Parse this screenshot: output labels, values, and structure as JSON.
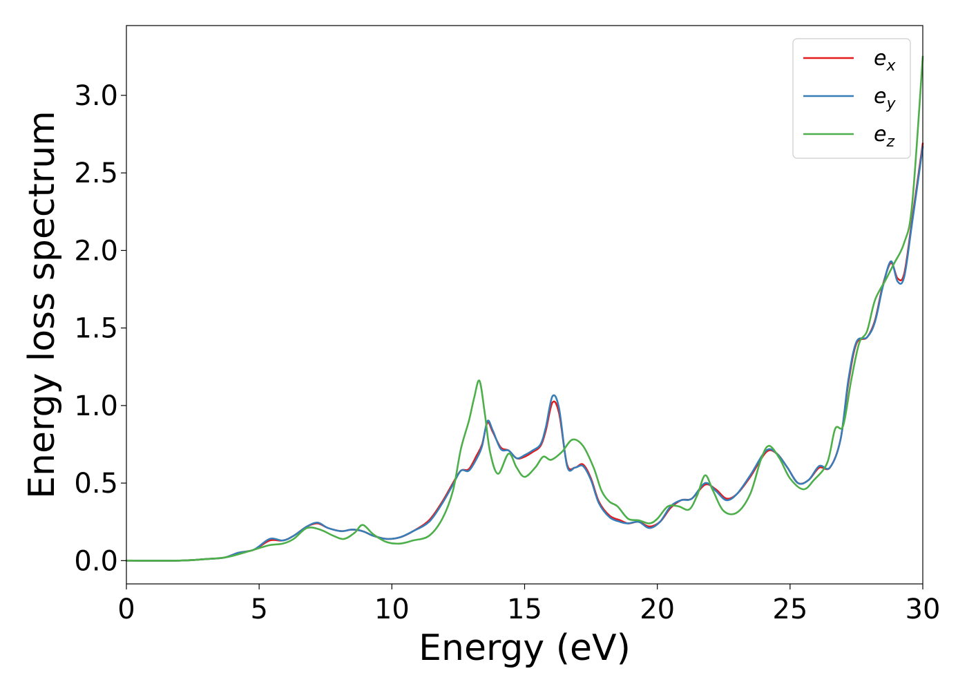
{
  "chart_data": {
    "type": "line",
    "title": "",
    "xlabel": "Energy (eV)",
    "ylabel": "Energy loss spectrum",
    "xlim": [
      0,
      30
    ],
    "ylim": [
      -0.15,
      3.45
    ],
    "xticks": [
      0,
      5,
      10,
      15,
      20,
      25,
      30
    ],
    "yticks": [
      0.0,
      0.5,
      1.0,
      1.5,
      2.0,
      2.5,
      3.0
    ],
    "grid": false,
    "legend_position": "top-right",
    "series": [
      {
        "name": "e_x",
        "legend_base": "e",
        "legend_sub": "x",
        "color": "#e41a1c",
        "points": [
          [
            0,
            0.0
          ],
          [
            2,
            0.0
          ],
          [
            3,
            0.01
          ],
          [
            3.7,
            0.02
          ],
          [
            4.2,
            0.05
          ],
          [
            4.8,
            0.07
          ],
          [
            5.4,
            0.13
          ],
          [
            5.9,
            0.13
          ],
          [
            6.3,
            0.16
          ],
          [
            6.8,
            0.22
          ],
          [
            7.2,
            0.24
          ],
          [
            7.6,
            0.21
          ],
          [
            8.1,
            0.19
          ],
          [
            8.5,
            0.2
          ],
          [
            8.9,
            0.19
          ],
          [
            9.3,
            0.16
          ],
          [
            9.8,
            0.14
          ],
          [
            10.3,
            0.15
          ],
          [
            10.8,
            0.19
          ],
          [
            11.4,
            0.26
          ],
          [
            11.9,
            0.38
          ],
          [
            12.3,
            0.5
          ],
          [
            12.6,
            0.58
          ],
          [
            12.9,
            0.59
          ],
          [
            13.2,
            0.68
          ],
          [
            13.4,
            0.75
          ],
          [
            13.6,
            0.89
          ],
          [
            13.8,
            0.83
          ],
          [
            14.1,
            0.73
          ],
          [
            14.4,
            0.71
          ],
          [
            14.7,
            0.66
          ],
          [
            15.0,
            0.67
          ],
          [
            15.3,
            0.7
          ],
          [
            15.6,
            0.74
          ],
          [
            15.8,
            0.84
          ],
          [
            16.05,
            1.02
          ],
          [
            16.3,
            0.95
          ],
          [
            16.6,
            0.62
          ],
          [
            16.9,
            0.6
          ],
          [
            17.2,
            0.62
          ],
          [
            17.5,
            0.53
          ],
          [
            17.8,
            0.38
          ],
          [
            18.2,
            0.29
          ],
          [
            18.6,
            0.26
          ],
          [
            18.9,
            0.24
          ],
          [
            19.3,
            0.25
          ],
          [
            19.7,
            0.22
          ],
          [
            20.1,
            0.25
          ],
          [
            20.5,
            0.34
          ],
          [
            20.9,
            0.39
          ],
          [
            21.3,
            0.4
          ],
          [
            21.8,
            0.49
          ],
          [
            22.2,
            0.46
          ],
          [
            22.6,
            0.4
          ],
          [
            23.0,
            0.43
          ],
          [
            23.5,
            0.54
          ],
          [
            24.1,
            0.7
          ],
          [
            24.5,
            0.69
          ],
          [
            24.9,
            0.6
          ],
          [
            25.3,
            0.5
          ],
          [
            25.7,
            0.52
          ],
          [
            26.1,
            0.6
          ],
          [
            26.5,
            0.6
          ],
          [
            26.9,
            0.78
          ],
          [
            27.2,
            1.15
          ],
          [
            27.5,
            1.4
          ],
          [
            27.9,
            1.44
          ],
          [
            28.2,
            1.55
          ],
          [
            28.5,
            1.78
          ],
          [
            28.8,
            1.92
          ],
          [
            29.05,
            1.82
          ],
          [
            29.3,
            1.85
          ],
          [
            29.6,
            2.2
          ],
          [
            30.0,
            2.69
          ]
        ]
      },
      {
        "name": "e_y",
        "legend_base": "e",
        "legend_sub": "y",
        "color": "#377eb8",
        "points": [
          [
            0,
            0.0
          ],
          [
            2,
            0.0
          ],
          [
            3,
            0.01
          ],
          [
            3.7,
            0.02
          ],
          [
            4.2,
            0.05
          ],
          [
            4.8,
            0.07
          ],
          [
            5.4,
            0.14
          ],
          [
            5.9,
            0.13
          ],
          [
            6.3,
            0.16
          ],
          [
            6.8,
            0.22
          ],
          [
            7.2,
            0.245
          ],
          [
            7.6,
            0.21
          ],
          [
            8.1,
            0.19
          ],
          [
            8.5,
            0.2
          ],
          [
            8.9,
            0.19
          ],
          [
            9.3,
            0.16
          ],
          [
            9.8,
            0.14
          ],
          [
            10.3,
            0.15
          ],
          [
            10.8,
            0.19
          ],
          [
            11.4,
            0.25
          ],
          [
            11.9,
            0.37
          ],
          [
            12.3,
            0.49
          ],
          [
            12.6,
            0.58
          ],
          [
            12.9,
            0.58
          ],
          [
            13.2,
            0.66
          ],
          [
            13.4,
            0.74
          ],
          [
            13.6,
            0.9
          ],
          [
            13.8,
            0.84
          ],
          [
            14.1,
            0.72
          ],
          [
            14.4,
            0.71
          ],
          [
            14.7,
            0.66
          ],
          [
            15.0,
            0.68
          ],
          [
            15.3,
            0.71
          ],
          [
            15.6,
            0.75
          ],
          [
            15.8,
            0.86
          ],
          [
            16.05,
            1.06
          ],
          [
            16.3,
            0.98
          ],
          [
            16.6,
            0.61
          ],
          [
            16.9,
            0.6
          ],
          [
            17.2,
            0.61
          ],
          [
            17.5,
            0.52
          ],
          [
            17.8,
            0.37
          ],
          [
            18.2,
            0.28
          ],
          [
            18.6,
            0.25
          ],
          [
            18.9,
            0.24
          ],
          [
            19.3,
            0.25
          ],
          [
            19.7,
            0.21
          ],
          [
            20.1,
            0.25
          ],
          [
            20.5,
            0.35
          ],
          [
            20.9,
            0.39
          ],
          [
            21.3,
            0.4
          ],
          [
            21.8,
            0.5
          ],
          [
            22.2,
            0.45
          ],
          [
            22.6,
            0.39
          ],
          [
            23.0,
            0.43
          ],
          [
            23.5,
            0.55
          ],
          [
            24.1,
            0.71
          ],
          [
            24.5,
            0.69
          ],
          [
            24.9,
            0.6
          ],
          [
            25.3,
            0.5
          ],
          [
            25.7,
            0.52
          ],
          [
            26.1,
            0.61
          ],
          [
            26.5,
            0.6
          ],
          [
            26.9,
            0.78
          ],
          [
            27.2,
            1.17
          ],
          [
            27.5,
            1.41
          ],
          [
            27.9,
            1.44
          ],
          [
            28.2,
            1.54
          ],
          [
            28.5,
            1.77
          ],
          [
            28.8,
            1.93
          ],
          [
            29.05,
            1.8
          ],
          [
            29.3,
            1.83
          ],
          [
            29.6,
            2.18
          ],
          [
            30.0,
            2.67
          ]
        ]
      },
      {
        "name": "e_z",
        "legend_base": "e",
        "legend_sub": "z",
        "color": "#4daf4a",
        "points": [
          [
            0,
            0.0
          ],
          [
            2,
            0.0
          ],
          [
            3,
            0.01
          ],
          [
            3.7,
            0.02
          ],
          [
            4.2,
            0.04
          ],
          [
            4.8,
            0.07
          ],
          [
            5.4,
            0.1
          ],
          [
            5.9,
            0.11
          ],
          [
            6.3,
            0.14
          ],
          [
            6.8,
            0.21
          ],
          [
            7.3,
            0.2
          ],
          [
            7.8,
            0.16
          ],
          [
            8.2,
            0.14
          ],
          [
            8.6,
            0.18
          ],
          [
            8.9,
            0.23
          ],
          [
            9.3,
            0.17
          ],
          [
            9.8,
            0.12
          ],
          [
            10.3,
            0.11
          ],
          [
            10.8,
            0.13
          ],
          [
            11.4,
            0.16
          ],
          [
            11.9,
            0.27
          ],
          [
            12.3,
            0.45
          ],
          [
            12.6,
            0.72
          ],
          [
            12.9,
            0.9
          ],
          [
            13.1,
            1.05
          ],
          [
            13.3,
            1.16
          ],
          [
            13.5,
            0.95
          ],
          [
            13.7,
            0.7
          ],
          [
            14.0,
            0.56
          ],
          [
            14.4,
            0.69
          ],
          [
            14.7,
            0.6
          ],
          [
            15.0,
            0.54
          ],
          [
            15.4,
            0.6
          ],
          [
            15.7,
            0.67
          ],
          [
            16.0,
            0.65
          ],
          [
            16.4,
            0.7
          ],
          [
            16.8,
            0.78
          ],
          [
            17.2,
            0.74
          ],
          [
            17.6,
            0.6
          ],
          [
            17.9,
            0.45
          ],
          [
            18.2,
            0.38
          ],
          [
            18.5,
            0.35
          ],
          [
            18.9,
            0.27
          ],
          [
            19.3,
            0.26
          ],
          [
            19.7,
            0.24
          ],
          [
            20.0,
            0.27
          ],
          [
            20.4,
            0.35
          ],
          [
            20.8,
            0.35
          ],
          [
            21.2,
            0.33
          ],
          [
            21.5,
            0.42
          ],
          [
            21.8,
            0.55
          ],
          [
            22.1,
            0.45
          ],
          [
            22.5,
            0.32
          ],
          [
            23.0,
            0.31
          ],
          [
            23.5,
            0.43
          ],
          [
            23.9,
            0.65
          ],
          [
            24.2,
            0.74
          ],
          [
            24.6,
            0.66
          ],
          [
            25.0,
            0.53
          ],
          [
            25.5,
            0.46
          ],
          [
            25.9,
            0.52
          ],
          [
            26.4,
            0.63
          ],
          [
            26.7,
            0.85
          ],
          [
            27.0,
            0.87
          ],
          [
            27.3,
            1.16
          ],
          [
            27.6,
            1.4
          ],
          [
            27.9,
            1.48
          ],
          [
            28.2,
            1.68
          ],
          [
            28.6,
            1.81
          ],
          [
            28.9,
            1.91
          ],
          [
            29.3,
            2.05
          ],
          [
            29.6,
            2.3
          ],
          [
            30.0,
            3.25
          ]
        ]
      }
    ]
  }
}
